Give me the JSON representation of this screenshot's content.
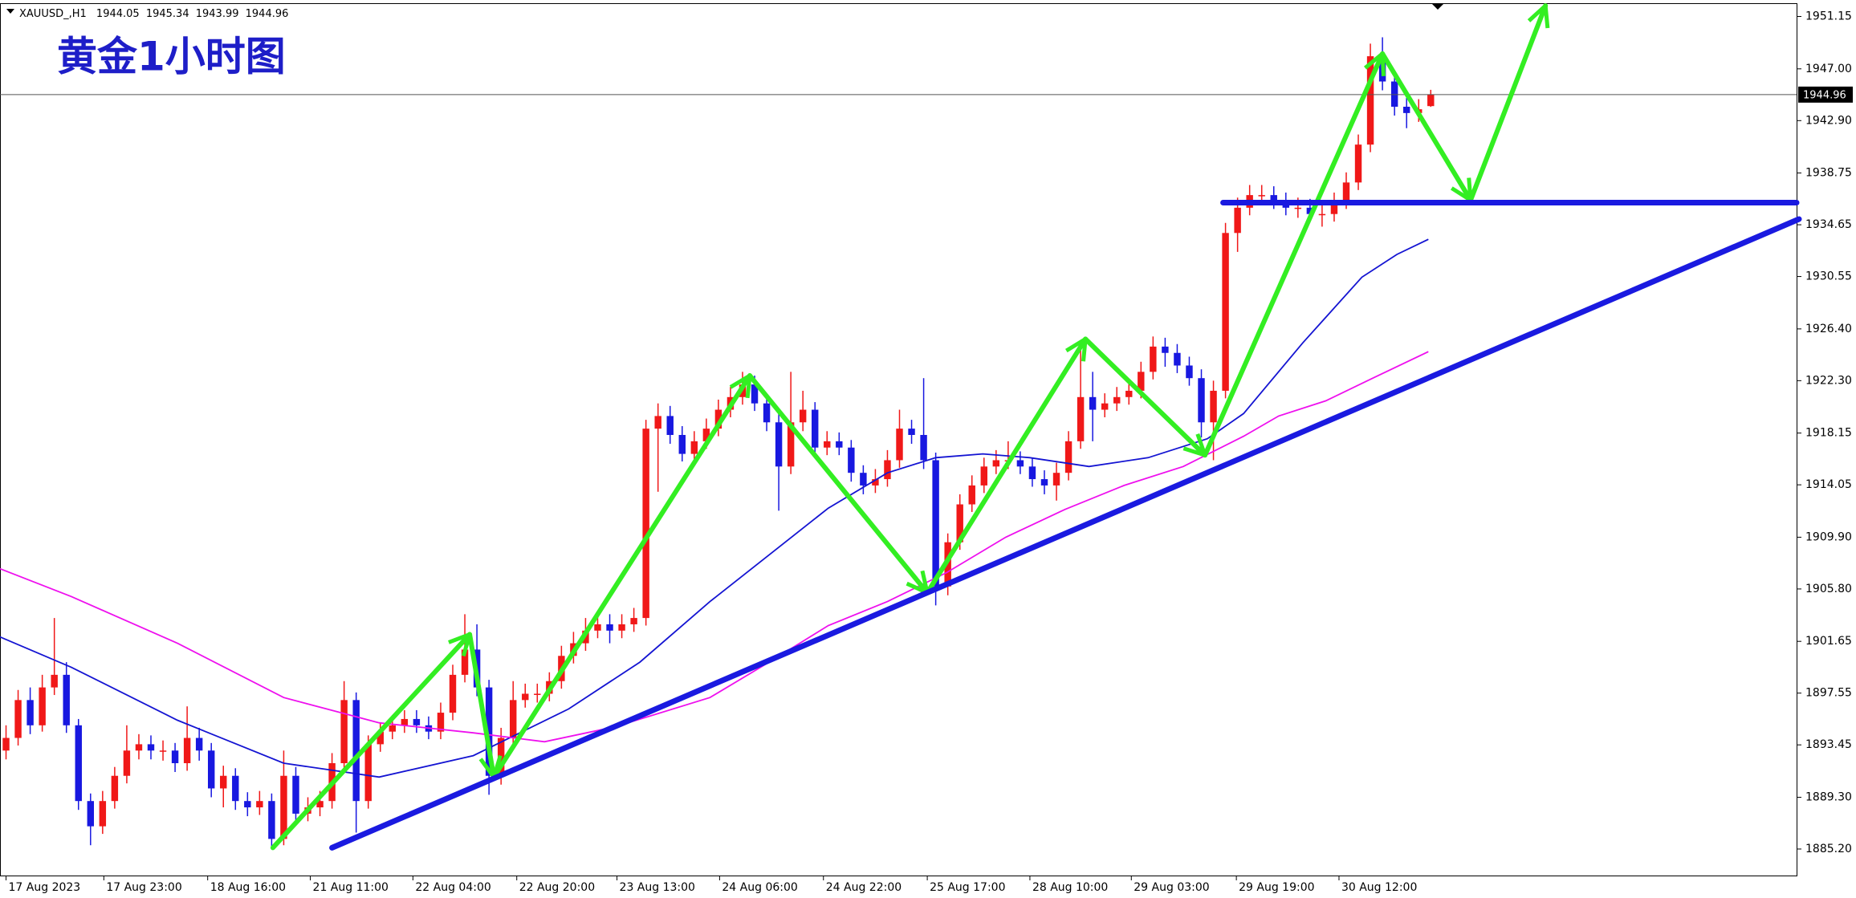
{
  "chart_data": {
    "type": "candlestick",
    "title": "黄金1小时图",
    "symbol": "XAUUSD_,H1",
    "up_color": "#f01818",
    "down_color": "#1818e0",
    "open": [
      1893,
      1894,
      1897,
      1895,
      1898,
      1899,
      1895,
      1889,
      1887,
      1889,
      1891,
      1893,
      1893.5,
      1893,
      1893,
      1892,
      1894,
      1893,
      1890,
      1891,
      1889,
      1888.5,
      1889,
      1886,
      1891,
      1888,
      1888.5,
      1889,
      1892,
      1897,
      1889,
      1893.5,
      1894.5,
      1895,
      1895.5,
      1895,
      1894.5,
      1896,
      1899,
      1901,
      1898,
      1891,
      1894,
      1897,
      1897.5,
      1897.5,
      1898.5,
      1900.5,
      1901.5,
      1902.5,
      1903,
      1902.5,
      1903,
      1903.5,
      1918.5,
      1919.5,
      1918,
      1916.5,
      1917.5,
      1918.5,
      1920,
      1921,
      1922,
      1920.5,
      1919,
      1915.5,
      1919,
      1920,
      1917,
      1917.5,
      1917,
      1915,
      1914,
      1914.5,
      1916,
      1918.5,
      1918,
      1916,
      1906,
      1909.5,
      1912.5,
      1914,
      1915.5,
      1916,
      1916,
      1915.5,
      1914.5,
      1914,
      1915,
      1917.5,
      1921,
      1920,
      1920.5,
      1921,
      1921.5,
      1923,
      1925,
      1924.5,
      1923.5,
      1922.5,
      1919,
      1921.5,
      1934,
      1936,
      1937,
      1937,
      1936.5,
      1936,
      1936,
      1935.5,
      1935.5,
      1936.5,
      1938,
      1941,
      1948,
      1946,
      1944,
      1943.5,
      1944.05
    ],
    "high": [
      1895,
      1897.8,
      1898,
      1899,
      1903.5,
      1900,
      1895.5,
      1889.6,
      1889.8,
      1891.7,
      1895,
      1894.3,
      1894.2,
      1893.8,
      1893.6,
      1896.5,
      1894.8,
      1893.6,
      1891.8,
      1891.6,
      1889.7,
      1889.8,
      1889.6,
      1893,
      1891.7,
      1889.3,
      1889.8,
      1892.8,
      1898.5,
      1897.6,
      1894.2,
      1895.2,
      1895.8,
      1896.2,
      1896.2,
      1895.7,
      1896.8,
      1899.8,
      1903.8,
      1903,
      1898.6,
      1894.8,
      1898.5,
      1898.3,
      1898.3,
      1899.2,
      1901.3,
      1902.4,
      1903.5,
      1904,
      1903.8,
      1903.8,
      1904.3,
      1919.2,
      1920.5,
      1920.3,
      1918.7,
      1918.3,
      1919.3,
      1920.8,
      1921.8,
      1923,
      1922.7,
      1921.2,
      1919.7,
      1923,
      1921.5,
      1920.6,
      1918.3,
      1918.2,
      1917.6,
      1915.6,
      1915.3,
      1916.8,
      1920,
      1919.2,
      1922.5,
      1916.6,
      1910.2,
      1913.3,
      1914.8,
      1916.2,
      1916.8,
      1917.5,
      1916.7,
      1916.2,
      1915.2,
      1915.8,
      1918.3,
      1925.5,
      1923,
      1921.3,
      1921.8,
      1922.3,
      1923.8,
      1925.8,
      1925.7,
      1925.2,
      1924.2,
      1923.2,
      1922.3,
      1934.8,
      1936.8,
      1937.8,
      1937.8,
      1937.7,
      1937.2,
      1936.8,
      1936.7,
      1936.3,
      1937.2,
      1938.8,
      1941.8,
      1949,
      1949.5,
      1946.7,
      1944.7,
      1944.6,
      1945.34
    ],
    "low": [
      1892.3,
      1893.4,
      1894.3,
      1894.5,
      1897.4,
      1894.4,
      1888.3,
      1885.5,
      1886.4,
      1888.4,
      1890.4,
      1892.3,
      1892.3,
      1892.2,
      1891.3,
      1891.4,
      1892.2,
      1889.3,
      1888.5,
      1888.3,
      1887.8,
      1887.9,
      1885.3,
      1885.5,
      1887.3,
      1887.4,
      1887.8,
      1888.4,
      1891.4,
      1886.5,
      1888.4,
      1892.9,
      1893.9,
      1894.4,
      1894.4,
      1893.9,
      1893.9,
      1895.4,
      1898.4,
      1897.3,
      1889.5,
      1890.3,
      1893.4,
      1896.4,
      1896.8,
      1896.9,
      1897.9,
      1899.9,
      1900.9,
      1901.9,
      1901.5,
      1901.9,
      1902.4,
      1902.9,
      1913.5,
      1917.3,
      1915.9,
      1915.8,
      1916.9,
      1917.9,
      1919.4,
      1920.4,
      1919.9,
      1918.3,
      1912,
      1914.9,
      1918.3,
      1916.3,
      1916.4,
      1916.4,
      1914.3,
      1913.3,
      1913.4,
      1913.9,
      1915.4,
      1917.3,
      1915.3,
      1904.5,
      1905.3,
      1908.9,
      1911.9,
      1913.4,
      1914.9,
      1915.3,
      1914.9,
      1913.9,
      1913.3,
      1912.8,
      1914.4,
      1916.9,
      1917.5,
      1919.4,
      1919.9,
      1920.4,
      1920.9,
      1922.4,
      1923.4,
      1922.9,
      1921.9,
      1917.8,
      1916,
      1920.9,
      1932.5,
      1935.4,
      1936.2,
      1935.9,
      1935.4,
      1935.2,
      1934.9,
      1934.5,
      1934.9,
      1935.9,
      1937.4,
      1940.4,
      1945.3,
      1943.3,
      1942.3,
      1942.8,
      1943.99
    ],
    "close": [
      1894,
      1897,
      1895,
      1898,
      1899,
      1895,
      1889,
      1887,
      1889,
      1891,
      1893,
      1893.5,
      1893,
      1893,
      1892,
      1894,
      1893,
      1890,
      1891,
      1889,
      1888.5,
      1889,
      1886,
      1891,
      1888,
      1888.5,
      1889,
      1892,
      1897,
      1889,
      1893.5,
      1894.5,
      1895,
      1895.5,
      1895,
      1894.5,
      1896,
      1899,
      1901,
      1898,
      1891,
      1894,
      1897,
      1897.5,
      1897.5,
      1898.5,
      1900.5,
      1901.5,
      1902.5,
      1903,
      1902.5,
      1903,
      1903.5,
      1918.5,
      1919.5,
      1918,
      1916.5,
      1917.5,
      1918.5,
      1920,
      1921,
      1922,
      1920.5,
      1919,
      1915.5,
      1919,
      1920,
      1917,
      1917.5,
      1917,
      1915,
      1914,
      1914.5,
      1916,
      1918.5,
      1918,
      1916,
      1906,
      1909.5,
      1912.5,
      1914,
      1915.5,
      1916,
      1916,
      1915.5,
      1914.5,
      1914,
      1915,
      1917.5,
      1921,
      1920,
      1920.5,
      1921,
      1921.5,
      1923,
      1925,
      1924.5,
      1923.5,
      1922.5,
      1919,
      1921.5,
      1934,
      1936,
      1937,
      1937,
      1936.5,
      1936,
      1936,
      1935.5,
      1935.5,
      1936.5,
      1938,
      1941,
      1948,
      1946,
      1944,
      1943.5,
      1943.8,
      1944.96
    ],
    "lines": [
      {
        "color": "#1414d2",
        "x": [
          -0.5,
          5.4,
          14.2,
          23,
          30.9,
          38.7,
          46.6,
          52.5,
          58.3,
          63.2,
          68.1,
          73,
          77,
          80.9,
          84.8,
          89.7,
          94.6,
          99.5,
          102.5,
          107.4,
          112.3,
          115.2,
          117.8
        ],
        "values": [
          1902,
          1899.6,
          1895.4,
          1892,
          1890.9,
          1892.6,
          1896.3,
          1900,
          1904.8,
          1908.5,
          1912.2,
          1915,
          1916.2,
          1916.5,
          1916.2,
          1915.5,
          1916.2,
          1917.7,
          1919.7,
          1925.3,
          1930.5,
          1932.3,
          1933.5
        ]
      },
      {
        "color": "#ee10ee",
        "x": [
          -0.5,
          5.4,
          14.2,
          23,
          30.9,
          38.7,
          44.6,
          50.5,
          58.3,
          63.2,
          68.1,
          73,
          77.9,
          82.8,
          87.7,
          92.6,
          97.5,
          102.5,
          105.4,
          109.3,
          113.2,
          117.8
        ],
        "values": [
          1907.4,
          1905.2,
          1901.5,
          1897.2,
          1895.2,
          1894.4,
          1893.7,
          1894.9,
          1897.2,
          1900,
          1902.9,
          1904.8,
          1907.1,
          1909.9,
          1912.1,
          1914,
          1915.5,
          1917.9,
          1919.5,
          1920.7,
          1922.5,
          1924.6
        ]
      }
    ],
    "annotations": [
      {
        "shape": "arrows",
        "color": "#33ee22",
        "x": [
          22.1,
          38.4,
          40.4,
          61.6,
          76.3,
          89.4,
          99.3,
          114,
          121.3,
          127.5
        ],
        "values": [
          1885.3,
          1902.2,
          1890.9,
          1922.7,
          1905.5,
          1925.6,
          1916.4,
          1948.2,
          1936.6,
          1952
        ]
      },
      {
        "shape": "line",
        "color": "#1a1ae0",
        "x": [
          27,
          148.5
        ],
        "values": [
          1885.3,
          1935.1
        ]
      },
      {
        "shape": "line",
        "color": "#1a1ae0",
        "x": [
          100.8,
          148.3
        ],
        "values": [
          1936.4,
          1936.4
        ]
      }
    ],
    "xlim": [
      -0.5,
      148.3
    ],
    "ylim": [
      1883.1,
      1952.2
    ],
    "yticks": [
      1951.15,
      {
        "value": 1947.0,
        "label": "1947.00"
      },
      {
        "value": 1942.9,
        "label": "1942.90"
      },
      {
        "value": 1938.75,
        "label": "1938.75"
      },
      1934.65,
      1930.55,
      {
        "value": 1926.4,
        "label": "1926.40"
      },
      {
        "value": 1922.3,
        "label": "1922.30"
      },
      {
        "value": 1918.15,
        "label": "1918.15"
      },
      1914.05,
      {
        "value": 1909.9,
        "label": "1909.90"
      },
      {
        "value": 1905.8,
        "label": "1905.80"
      },
      1901.65,
      1897.55,
      1893.45,
      {
        "value": 1889.3,
        "label": "1889.30"
      },
      {
        "value": 1885.2,
        "label": "1885.20"
      }
    ],
    "xticks": [
      {
        "value": 0,
        "label": "17 Aug 2023"
      },
      {
        "value": 8.1,
        "label": "17 Aug 23:00"
      },
      {
        "value": 16.7,
        "label": "18 Aug 16:00"
      },
      {
        "value": 25.2,
        "label": "21 Aug 11:00"
      },
      {
        "value": 33.7,
        "label": "22 Aug 04:00"
      },
      {
        "value": 42.3,
        "label": "22 Aug 20:00"
      },
      {
        "value": 50.6,
        "label": "23 Aug 13:00"
      },
      {
        "value": 59.1,
        "label": "24 Aug 06:00"
      },
      {
        "value": 67.7,
        "label": "24 Aug 22:00"
      },
      {
        "value": 76.3,
        "label": "25 Aug 17:00"
      },
      {
        "value": 84.8,
        "label": "28 Aug 10:00"
      },
      {
        "value": 93.2,
        "label": "29 Aug 03:00"
      },
      {
        "value": 101.9,
        "label": "29 Aug 19:00"
      },
      {
        "value": 110.4,
        "label": "30 Aug 12:00"
      }
    ],
    "grid": false
  }
}
